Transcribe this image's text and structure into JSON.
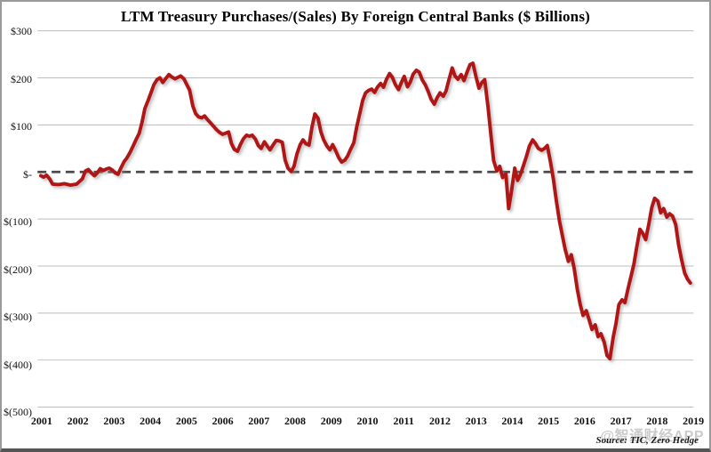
{
  "chart_data": {
    "type": "line",
    "title": "LTM Treasury Purchases/(Sales) By Foreign Central Banks ($ Billions)",
    "xlabel": "",
    "ylabel": "",
    "xlim": [
      2000.83,
      2019.17
    ],
    "ylim": [
      -500,
      300
    ],
    "grid": "horizontal",
    "legend": "none",
    "x_ticks": [
      "2001",
      "2002",
      "2003",
      "2004",
      "2005",
      "2006",
      "2007",
      "2008",
      "2009",
      "2010",
      "2011",
      "2012",
      "2013",
      "2014",
      "2015",
      "2016",
      "2017",
      "2018",
      "2019"
    ],
    "y_ticks": [
      {
        "value": 300,
        "label": "$300"
      },
      {
        "value": 200,
        "label": "$200"
      },
      {
        "value": 100,
        "label": "$100"
      },
      {
        "value": 0,
        "label": "$-"
      },
      {
        "value": -100,
        "label": "$(100)"
      },
      {
        "value": -200,
        "label": "$(200)"
      },
      {
        "value": -300,
        "label": "$(300)"
      },
      {
        "value": -400,
        "label": "$(400)"
      },
      {
        "value": -500,
        "label": "$(500)"
      }
    ],
    "zero_line": {
      "style": "dashed",
      "color": "#4a4a4a"
    },
    "colors": {
      "line": "#b01218",
      "grid": "#bdbdbd",
      "shadow": "#8a8a8a",
      "text": "#111111",
      "watermark": "#cbcbcb",
      "border": "#9a9a9a"
    },
    "series": [
      {
        "name": "LTM Treasury Purchases/(Sales) by Foreign Central Banks",
        "color": "#b01218",
        "points": [
          [
            2000.92,
            -8
          ],
          [
            2001.0,
            -11
          ],
          [
            2001.08,
            -7
          ],
          [
            2001.17,
            -15
          ],
          [
            2001.25,
            -26
          ],
          [
            2001.42,
            -27
          ],
          [
            2001.58,
            -25
          ],
          [
            2001.75,
            -28
          ],
          [
            2001.92,
            -26
          ],
          [
            2002.08,
            -15
          ],
          [
            2002.17,
            2
          ],
          [
            2002.25,
            5
          ],
          [
            2002.33,
            -2
          ],
          [
            2002.42,
            -8
          ],
          [
            2002.5,
            -2
          ],
          [
            2002.58,
            7
          ],
          [
            2002.67,
            3
          ],
          [
            2002.75,
            6
          ],
          [
            2002.83,
            8
          ],
          [
            2002.92,
            4
          ],
          [
            2003.0,
            -2
          ],
          [
            2003.08,
            -5
          ],
          [
            2003.17,
            10
          ],
          [
            2003.25,
            22
          ],
          [
            2003.33,
            30
          ],
          [
            2003.42,
            42
          ],
          [
            2003.5,
            55
          ],
          [
            2003.58,
            68
          ],
          [
            2003.67,
            82
          ],
          [
            2003.75,
            105
          ],
          [
            2003.83,
            135
          ],
          [
            2003.92,
            152
          ],
          [
            2004.0,
            168
          ],
          [
            2004.08,
            185
          ],
          [
            2004.17,
            196
          ],
          [
            2004.25,
            200
          ],
          [
            2004.33,
            190
          ],
          [
            2004.42,
            199
          ],
          [
            2004.5,
            207
          ],
          [
            2004.58,
            202
          ],
          [
            2004.67,
            198
          ],
          [
            2004.75,
            201
          ],
          [
            2004.83,
            204
          ],
          [
            2004.92,
            198
          ],
          [
            2005.0,
            186
          ],
          [
            2005.08,
            174
          ],
          [
            2005.17,
            140
          ],
          [
            2005.25,
            124
          ],
          [
            2005.33,
            117
          ],
          [
            2005.42,
            115
          ],
          [
            2005.5,
            119
          ],
          [
            2005.58,
            111
          ],
          [
            2005.67,
            104
          ],
          [
            2005.75,
            97
          ],
          [
            2005.83,
            90
          ],
          [
            2005.92,
            84
          ],
          [
            2006.0,
            80
          ],
          [
            2006.08,
            82
          ],
          [
            2006.17,
            85
          ],
          [
            2006.25,
            60
          ],
          [
            2006.33,
            48
          ],
          [
            2006.42,
            44
          ],
          [
            2006.5,
            58
          ],
          [
            2006.58,
            70
          ],
          [
            2006.67,
            78
          ],
          [
            2006.75,
            76
          ],
          [
            2006.83,
            78
          ],
          [
            2006.92,
            70
          ],
          [
            2007.0,
            56
          ],
          [
            2007.08,
            50
          ],
          [
            2007.17,
            64
          ],
          [
            2007.25,
            55
          ],
          [
            2007.33,
            47
          ],
          [
            2007.42,
            58
          ],
          [
            2007.5,
            67
          ],
          [
            2007.58,
            66
          ],
          [
            2007.67,
            63
          ],
          [
            2007.75,
            25
          ],
          [
            2007.83,
            8
          ],
          [
            2007.92,
            1
          ],
          [
            2008.0,
            12
          ],
          [
            2008.08,
            38
          ],
          [
            2008.17,
            58
          ],
          [
            2008.25,
            68
          ],
          [
            2008.33,
            60
          ],
          [
            2008.42,
            57
          ],
          [
            2008.5,
            95
          ],
          [
            2008.58,
            123
          ],
          [
            2008.67,
            114
          ],
          [
            2008.75,
            85
          ],
          [
            2008.83,
            68
          ],
          [
            2008.92,
            55
          ],
          [
            2009.0,
            47
          ],
          [
            2009.08,
            58
          ],
          [
            2009.17,
            44
          ],
          [
            2009.25,
            30
          ],
          [
            2009.33,
            21
          ],
          [
            2009.42,
            25
          ],
          [
            2009.5,
            34
          ],
          [
            2009.58,
            48
          ],
          [
            2009.67,
            62
          ],
          [
            2009.75,
            95
          ],
          [
            2009.83,
            122
          ],
          [
            2009.92,
            152
          ],
          [
            2010.0,
            168
          ],
          [
            2010.08,
            173
          ],
          [
            2010.17,
            176
          ],
          [
            2010.25,
            169
          ],
          [
            2010.33,
            180
          ],
          [
            2010.42,
            188
          ],
          [
            2010.5,
            180
          ],
          [
            2010.58,
            196
          ],
          [
            2010.67,
            209
          ],
          [
            2010.75,
            201
          ],
          [
            2010.83,
            186
          ],
          [
            2010.92,
            175
          ],
          [
            2011.0,
            190
          ],
          [
            2011.08,
            203
          ],
          [
            2011.17,
            181
          ],
          [
            2011.25,
            191
          ],
          [
            2011.33,
            208
          ],
          [
            2011.42,
            216
          ],
          [
            2011.5,
            212
          ],
          [
            2011.58,
            196
          ],
          [
            2011.67,
            185
          ],
          [
            2011.75,
            171
          ],
          [
            2011.83,
            155
          ],
          [
            2011.92,
            144
          ],
          [
            2012.0,
            158
          ],
          [
            2012.08,
            168
          ],
          [
            2012.17,
            161
          ],
          [
            2012.25,
            172
          ],
          [
            2012.33,
            196
          ],
          [
            2012.42,
            221
          ],
          [
            2012.5,
            204
          ],
          [
            2012.58,
            197
          ],
          [
            2012.67,
            207
          ],
          [
            2012.75,
            194
          ],
          [
            2012.83,
            211
          ],
          [
            2012.92,
            228
          ],
          [
            2013.0,
            231
          ],
          [
            2013.08,
            204
          ],
          [
            2013.17,
            178
          ],
          [
            2013.25,
            190
          ],
          [
            2013.33,
            196
          ],
          [
            2013.42,
            140
          ],
          [
            2013.5,
            80
          ],
          [
            2013.58,
            24
          ],
          [
            2013.67,
            2
          ],
          [
            2013.75,
            12
          ],
          [
            2013.83,
            -12
          ],
          [
            2013.92,
            -4
          ],
          [
            2014.0,
            -78
          ],
          [
            2014.08,
            -40
          ],
          [
            2014.17,
            8
          ],
          [
            2014.25,
            -18
          ],
          [
            2014.33,
            -5
          ],
          [
            2014.42,
            15
          ],
          [
            2014.5,
            34
          ],
          [
            2014.58,
            55
          ],
          [
            2014.67,
            68
          ],
          [
            2014.75,
            60
          ],
          [
            2014.83,
            50
          ],
          [
            2014.92,
            46
          ],
          [
            2015.0,
            50
          ],
          [
            2015.08,
            56
          ],
          [
            2015.17,
            20
          ],
          [
            2015.25,
            -15
          ],
          [
            2015.33,
            -60
          ],
          [
            2015.42,
            -105
          ],
          [
            2015.5,
            -135
          ],
          [
            2015.58,
            -165
          ],
          [
            2015.67,
            -190
          ],
          [
            2015.75,
            -176
          ],
          [
            2015.83,
            -205
          ],
          [
            2015.92,
            -250
          ],
          [
            2016.0,
            -282
          ],
          [
            2016.08,
            -305
          ],
          [
            2016.17,
            -295
          ],
          [
            2016.25,
            -315
          ],
          [
            2016.33,
            -335
          ],
          [
            2016.42,
            -325
          ],
          [
            2016.5,
            -350
          ],
          [
            2016.58,
            -344
          ],
          [
            2016.67,
            -362
          ],
          [
            2016.75,
            -390
          ],
          [
            2016.83,
            -397
          ],
          [
            2016.92,
            -352
          ],
          [
            2017.0,
            -322
          ],
          [
            2017.08,
            -282
          ],
          [
            2017.17,
            -272
          ],
          [
            2017.25,
            -278
          ],
          [
            2017.33,
            -250
          ],
          [
            2017.42,
            -222
          ],
          [
            2017.5,
            -196
          ],
          [
            2017.58,
            -160
          ],
          [
            2017.67,
            -122
          ],
          [
            2017.75,
            -131
          ],
          [
            2017.83,
            -144
          ],
          [
            2017.92,
            -110
          ],
          [
            2018.0,
            -76
          ],
          [
            2018.08,
            -56
          ],
          [
            2018.17,
            -62
          ],
          [
            2018.25,
            -87
          ],
          [
            2018.33,
            -78
          ],
          [
            2018.42,
            -96
          ],
          [
            2018.5,
            -89
          ],
          [
            2018.58,
            -94
          ],
          [
            2018.67,
            -112
          ],
          [
            2018.75,
            -155
          ],
          [
            2018.83,
            -186
          ],
          [
            2018.92,
            -215
          ],
          [
            2019.0,
            -228
          ],
          [
            2019.08,
            -236
          ]
        ]
      }
    ],
    "source_note": "Source: TIC, Zero Hedge",
    "watermark": "@智通财经APP"
  }
}
